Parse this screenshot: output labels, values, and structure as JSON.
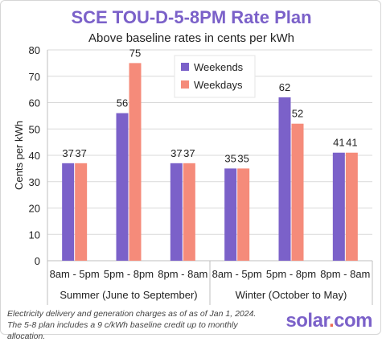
{
  "chart_data": {
    "type": "bar",
    "title": "SCE TOU-D-5-8PM Rate Plan",
    "subtitle": "Above baseline rates in cents per kWh",
    "ylabel": "Cents per kWh",
    "xlabel": "",
    "ylim": [
      0,
      80
    ],
    "yticks": [
      0,
      10,
      20,
      30,
      40,
      50,
      60,
      70,
      80
    ],
    "grid": "horizontal",
    "legend_position": "top-center",
    "categories": [
      "8am - 5pm",
      "5pm - 8pm",
      "8pm - 8am",
      "8am - 5pm",
      "5pm - 8pm",
      "8pm - 8am"
    ],
    "groups": [
      {
        "label": "Summer (June to September)",
        "categories": [
          0,
          1,
          2
        ]
      },
      {
        "label": "Winter (October to May)",
        "categories": [
          3,
          4,
          5
        ]
      }
    ],
    "series": [
      {
        "name": "Weekends",
        "color": "#7b61c9",
        "values": [
          37,
          56,
          37,
          35,
          62,
          41
        ]
      },
      {
        "name": "Weekdays",
        "color": "#f58b7a",
        "values": [
          37,
          75,
          37,
          35,
          52,
          41
        ]
      }
    ]
  },
  "footnote": "Electricity delivery and generation charges as of as of Jan 1, 2024. The 5-8 plan includes a 9 c/kWh baseline credit up to monthly allocation.",
  "brand": {
    "name": "solar",
    "dot": ".",
    "tld": "com"
  }
}
